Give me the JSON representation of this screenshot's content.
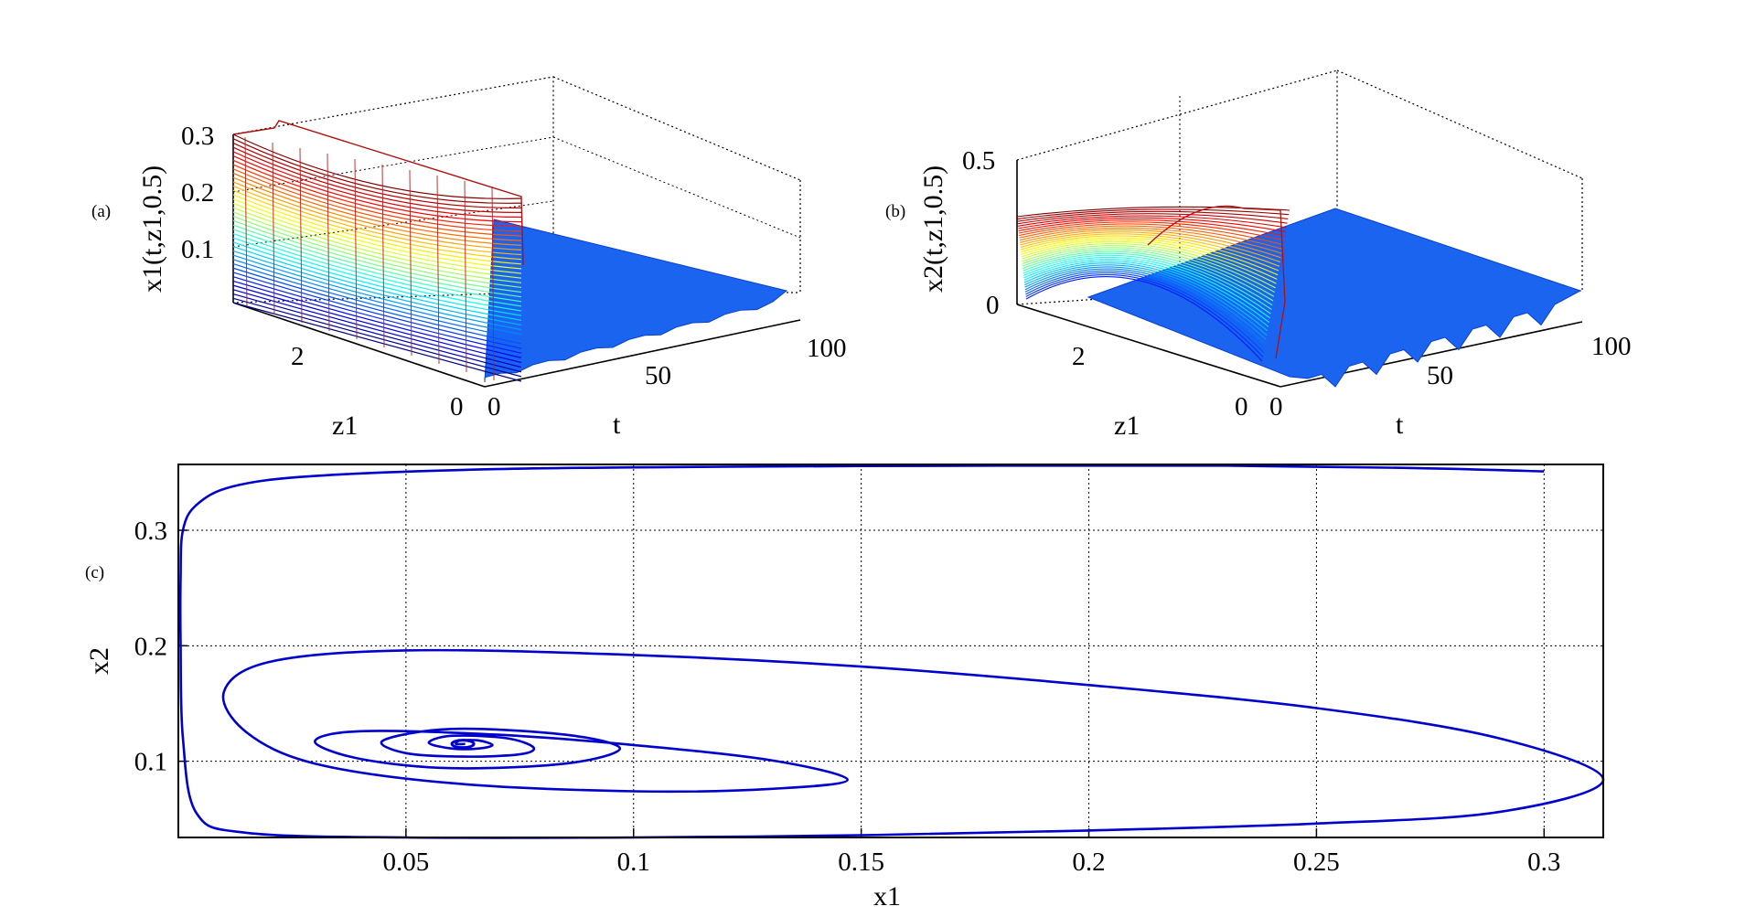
{
  "chart_data": [
    {
      "panel": "(a)",
      "type": "surface",
      "zlabel": "x1(t,z1,0.5)",
      "xlabel": "t",
      "ylabel": "z1",
      "xticks": [
        "0",
        "50",
        "100"
      ],
      "yticks": [
        "0",
        "2"
      ],
      "zticks": [
        "0.1",
        "0.2",
        "0.3"
      ],
      "xlim": [
        0,
        100
      ],
      "zlim": [
        0,
        0.3
      ],
      "colormap": "jet",
      "description_values": {
        "initial_peak": 0.3,
        "steady_state": 0.06
      }
    },
    {
      "panel": "(b)",
      "type": "surface",
      "zlabel": "x2(t,z1,0.5)",
      "xlabel": "t",
      "ylabel": "z1",
      "xticks": [
        "0",
        "50",
        "100"
      ],
      "yticks": [
        "0",
        "2"
      ],
      "zticks": [
        "0",
        "0.5"
      ],
      "xlim": [
        0,
        100
      ],
      "zlim": [
        0,
        0.5
      ],
      "colormap": "jet"
    },
    {
      "panel": "(c)",
      "type": "line",
      "xlabel": "x1",
      "ylabel": "x2",
      "xticks": [
        "0.05",
        "0.1",
        "0.15",
        "0.2",
        "0.25",
        "0.3"
      ],
      "yticks": [
        "0.1",
        "0.2",
        "0.3"
      ],
      "xlim": [
        0,
        0.313
      ],
      "ylim": [
        0.034,
        0.357
      ],
      "grid": true,
      "series": [
        {
          "color": "#0000cc",
          "x": [
            0.3,
            0.27,
            0.23,
            0.18,
            0.12,
            0.07,
            0.03,
            0.012,
            0.004,
            0.001,
            0.0005,
            0.0005,
            0.001,
            0.004,
            0.015,
            0.05,
            0.1,
            0.15,
            0.2,
            0.25,
            0.29,
            0.313,
            0.29,
            0.25,
            0.2,
            0.15,
            0.1,
            0.05,
            0.02,
            0.01,
            0.015,
            0.03,
            0.06,
            0.1,
            0.13,
            0.147,
            0.13,
            0.1,
            0.07,
            0.04,
            0.03,
            0.04,
            0.06,
            0.085,
            0.097,
            0.085,
            0.06,
            0.045,
            0.05,
            0.063,
            0.075,
            0.078,
            0.072,
            0.06,
            0.055,
            0.06,
            0.066,
            0.069,
            0.066,
            0.062,
            0.061,
            0.063
          ],
          "y": [
            0.351,
            0.354,
            0.356,
            0.356,
            0.355,
            0.353,
            0.347,
            0.338,
            0.322,
            0.3,
            0.26,
            0.2,
            0.12,
            0.055,
            0.038,
            0.034,
            0.034,
            0.036,
            0.04,
            0.046,
            0.056,
            0.084,
            0.12,
            0.146,
            0.166,
            0.182,
            0.192,
            0.196,
            0.186,
            0.16,
            0.125,
            0.098,
            0.081,
            0.074,
            0.076,
            0.084,
            0.101,
            0.114,
            0.123,
            0.126,
            0.117,
            0.102,
            0.094,
            0.098,
            0.111,
            0.123,
            0.128,
            0.118,
            0.107,
            0.104,
            0.106,
            0.112,
            0.12,
            0.122,
            0.116,
            0.111,
            0.111,
            0.114,
            0.118,
            0.118,
            0.115,
            0.115
          ]
        }
      ]
    }
  ]
}
